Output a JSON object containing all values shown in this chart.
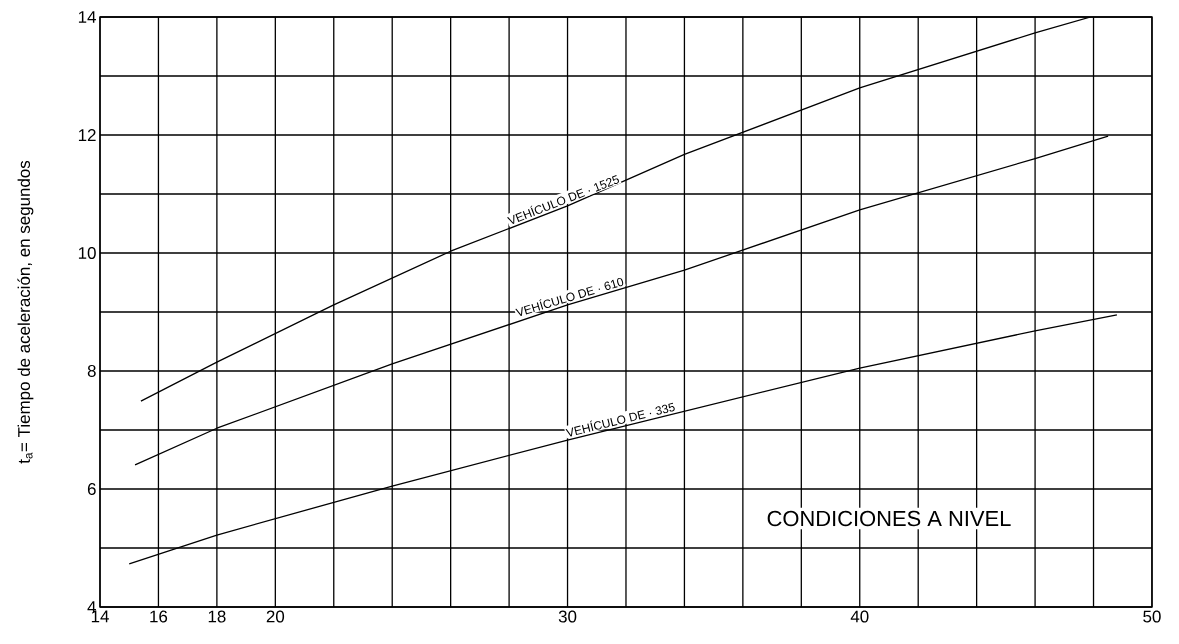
{
  "chart_data": {
    "type": "line",
    "ylabel": "t$_{a}$= Tiempo de aceleración, en segundos",
    "annotations": [
      "CONDICIONES A NIVEL"
    ],
    "series": [
      {
        "name": "VEHÍCULO DE · 1525",
        "color": "#000000",
        "x": [
          15.4,
          18,
          22,
          26,
          30,
          34,
          40,
          46,
          47.9
        ],
        "values": [
          7.49,
          8.15,
          9.12,
          10.03,
          10.8,
          11.67,
          12.8,
          13.73,
          14.0
        ]
      },
      {
        "name": "VEHÍCULO DE · 610",
        "color": "#000000",
        "x": [
          15.2,
          18,
          24,
          30,
          34,
          40,
          46,
          48.5
        ],
        "values": [
          6.41,
          7.03,
          8.12,
          9.12,
          9.71,
          10.73,
          11.6,
          11.98
        ]
      },
      {
        "name": "VEHÍCULO DE · 335",
        "color": "#000000",
        "x": [
          15.0,
          18,
          24,
          30,
          40,
          46,
          48.8
        ],
        "values": [
          4.73,
          5.22,
          6.05,
          6.83,
          8.05,
          8.68,
          8.95
        ]
      }
    ],
    "xlim": [
      14,
      50
    ],
    "ylim": [
      4,
      14
    ],
    "xticks": [
      14,
      16,
      18,
      20,
      {
        "value": 22,
        "label": null
      },
      {
        "value": 24,
        "label": null
      },
      {
        "value": 26,
        "label": null
      },
      {
        "value": 28,
        "label": null
      },
      30,
      {
        "value": 32,
        "label": null
      },
      {
        "value": 34,
        "label": null
      },
      {
        "value": 36,
        "label": null
      },
      {
        "value": 38,
        "label": null
      },
      40,
      {
        "value": 42,
        "label": null
      },
      {
        "value": 44,
        "label": null
      },
      {
        "value": 46,
        "label": null
      },
      {
        "value": 48,
        "label": null
      },
      50
    ],
    "yticks": [
      4,
      {
        "value": 5,
        "label": null
      },
      6,
      {
        "value": 7,
        "label": null
      },
      8,
      {
        "value": 9,
        "label": null
      },
      10,
      {
        "value": 11,
        "label": null
      },
      12,
      {
        "value": 13,
        "label": null
      },
      14
    ],
    "grid": true,
    "legend": false,
    "marker": "none",
    "line_style": "solid"
  }
}
